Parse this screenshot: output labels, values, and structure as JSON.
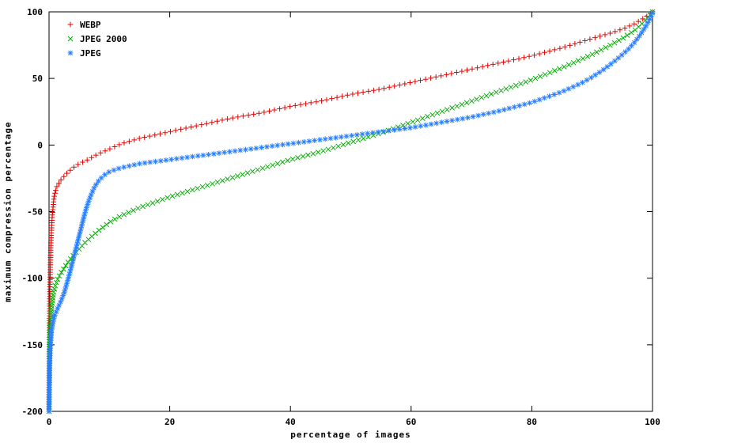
{
  "chart_data": {
    "type": "scatter",
    "title": "",
    "xlabel": "percentage of images",
    "ylabel": "maximum compression percentage",
    "xlim": [
      0,
      100
    ],
    "ylim": [
      -200,
      100
    ],
    "x_ticks": [
      0,
      20,
      40,
      60,
      80,
      100
    ],
    "y_ticks": [
      -200,
      -150,
      -100,
      -50,
      0,
      50,
      100
    ],
    "grid": false,
    "legend_position": "top-left",
    "background_color": "#ffffff",
    "axis_color": "#000000",
    "series": [
      {
        "name": "WEBP",
        "marker": "plus",
        "color": "#e60300",
        "points": [
          [
            0,
            -200
          ],
          [
            0.05,
            -150
          ],
          [
            0.1,
            -120
          ],
          [
            0.2,
            -95
          ],
          [
            0.3,
            -75
          ],
          [
            0.5,
            -55
          ],
          [
            0.8,
            -40
          ],
          [
            1.2,
            -32
          ],
          [
            2,
            -26
          ],
          [
            3,
            -21
          ],
          [
            4,
            -17
          ],
          [
            5,
            -14
          ],
          [
            6,
            -12
          ],
          [
            8,
            -7
          ],
          [
            10,
            -3
          ],
          [
            12,
            1
          ],
          [
            15,
            5
          ],
          [
            20,
            10
          ],
          [
            25,
            15
          ],
          [
            30,
            20
          ],
          [
            35,
            24
          ],
          [
            40,
            29
          ],
          [
            45,
            33
          ],
          [
            50,
            38
          ],
          [
            55,
            42
          ],
          [
            60,
            47
          ],
          [
            65,
            52
          ],
          [
            70,
            57
          ],
          [
            75,
            62
          ],
          [
            80,
            67
          ],
          [
            85,
            73
          ],
          [
            90,
            80
          ],
          [
            93,
            84
          ],
          [
            95,
            87
          ],
          [
            97,
            91
          ],
          [
            98.5,
            95
          ],
          [
            99.5,
            98
          ],
          [
            100,
            100
          ]
        ]
      },
      {
        "name": "JPEG 2000",
        "marker": "cross",
        "color": "#00b000",
        "points": [
          [
            0,
            -200
          ],
          [
            0.05,
            -170
          ],
          [
            0.1,
            -150
          ],
          [
            0.2,
            -135
          ],
          [
            0.4,
            -122
          ],
          [
            0.7,
            -112
          ],
          [
            1,
            -106
          ],
          [
            1.5,
            -100
          ],
          [
            2,
            -96
          ],
          [
            3,
            -89
          ],
          [
            4,
            -83
          ],
          [
            5,
            -78
          ],
          [
            6,
            -73
          ],
          [
            8,
            -65
          ],
          [
            10,
            -58
          ],
          [
            12,
            -53
          ],
          [
            15,
            -47
          ],
          [
            20,
            -39
          ],
          [
            25,
            -32
          ],
          [
            30,
            -25
          ],
          [
            35,
            -18
          ],
          [
            40,
            -11
          ],
          [
            45,
            -5
          ],
          [
            50,
            2
          ],
          [
            55,
            9
          ],
          [
            60,
            17
          ],
          [
            65,
            25
          ],
          [
            70,
            33
          ],
          [
            75,
            41
          ],
          [
            80,
            49
          ],
          [
            85,
            58
          ],
          [
            90,
            68
          ],
          [
            93,
            75
          ],
          [
            95,
            80
          ],
          [
            97,
            86
          ],
          [
            98.5,
            92
          ],
          [
            99.5,
            97
          ],
          [
            100,
            100
          ]
        ]
      },
      {
        "name": "JPEG",
        "marker": "asterisk",
        "color": "#2a7fff",
        "points": [
          [
            0,
            -200
          ],
          [
            0.05,
            -180
          ],
          [
            0.1,
            -165
          ],
          [
            0.2,
            -152
          ],
          [
            0.4,
            -140
          ],
          [
            0.7,
            -132
          ],
          [
            1,
            -127
          ],
          [
            1.5,
            -122
          ],
          [
            2,
            -117
          ],
          [
            2.5,
            -111
          ],
          [
            3,
            -103
          ],
          [
            3.5,
            -95
          ],
          [
            4,
            -86
          ],
          [
            4.5,
            -77
          ],
          [
            5,
            -68
          ],
          [
            5.5,
            -59
          ],
          [
            6,
            -50
          ],
          [
            6.5,
            -43
          ],
          [
            7,
            -37
          ],
          [
            7.5,
            -32
          ],
          [
            8,
            -28
          ],
          [
            9,
            -23
          ],
          [
            10,
            -20
          ],
          [
            12,
            -17
          ],
          [
            15,
            -14
          ],
          [
            20,
            -11
          ],
          [
            25,
            -8
          ],
          [
            30,
            -5
          ],
          [
            35,
            -2
          ],
          [
            40,
            1
          ],
          [
            45,
            4
          ],
          [
            50,
            7
          ],
          [
            55,
            10
          ],
          [
            60,
            13
          ],
          [
            65,
            17
          ],
          [
            70,
            21
          ],
          [
            75,
            26
          ],
          [
            80,
            32
          ],
          [
            85,
            40
          ],
          [
            88,
            46
          ],
          [
            90,
            51
          ],
          [
            92,
            57
          ],
          [
            94,
            64
          ],
          [
            96,
            72
          ],
          [
            97,
            77
          ],
          [
            98,
            83
          ],
          [
            99,
            90
          ],
          [
            99.5,
            94
          ],
          [
            100,
            99
          ]
        ]
      }
    ]
  }
}
